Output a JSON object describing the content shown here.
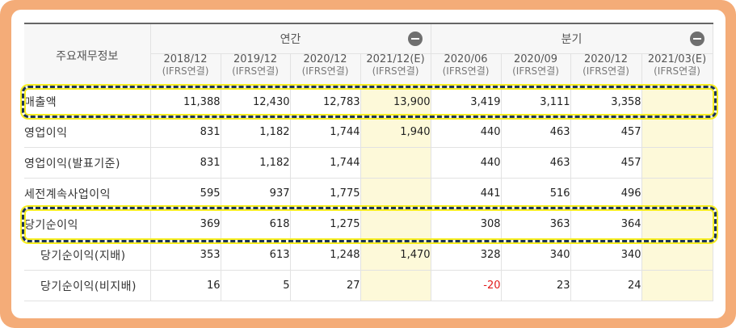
{
  "table": {
    "corner_label": "주요재무정보",
    "groups": [
      {
        "label": "연간",
        "toggle_icon": "minus-circle-icon"
      },
      {
        "label": "분기",
        "toggle_icon": "minus-circle-icon"
      }
    ],
    "columns": [
      {
        "period": "2018/12",
        "basis": "(IFRS연결)"
      },
      {
        "period": "2019/12",
        "basis": "(IFRS연결)"
      },
      {
        "period": "2020/12",
        "basis": "(IFRS연결)"
      },
      {
        "period": "2021/12(E)",
        "basis": "(IFRS연결)"
      },
      {
        "period": "2020/06",
        "basis": "(IFRS연결)"
      },
      {
        "period": "2020/09",
        "basis": "(IFRS연결)"
      },
      {
        "period": "2020/12",
        "basis": "(IFRS연결)"
      },
      {
        "period": "2021/03(E)",
        "basis": "(IFRS연결)"
      }
    ],
    "rows": [
      {
        "label": "매출액",
        "values": [
          "11,388",
          "12,430",
          "12,783",
          "13,900",
          "3,419",
          "3,111",
          "3,358",
          ""
        ]
      },
      {
        "label": "영업이익",
        "values": [
          "831",
          "1,182",
          "1,744",
          "1,940",
          "440",
          "463",
          "457",
          ""
        ]
      },
      {
        "label": "영업이익(발표기준)",
        "values": [
          "831",
          "1,182",
          "1,744",
          "",
          "440",
          "463",
          "457",
          ""
        ]
      },
      {
        "label": "세전계속사업이익",
        "values": [
          "595",
          "937",
          "1,775",
          "",
          "441",
          "516",
          "496",
          ""
        ]
      },
      {
        "label": "당기순이익",
        "values": [
          "369",
          "618",
          "1,275",
          "",
          "308",
          "363",
          "364",
          ""
        ]
      },
      {
        "label": "당기순이익(지배)",
        "values": [
          "353",
          "613",
          "1,248",
          "1,470",
          "328",
          "340",
          "340",
          ""
        ]
      },
      {
        "label": "당기순이익(비지배)",
        "values": [
          "16",
          "5",
          "27",
          "",
          "-20",
          "23",
          "24",
          ""
        ]
      }
    ]
  },
  "colors": {
    "frame": "#f4ac78",
    "estimate_column": "#fdf9d9",
    "highlight_border": "#1d3557",
    "highlight_glow": "#f7ee20",
    "negative_value": "#e11b1b"
  }
}
